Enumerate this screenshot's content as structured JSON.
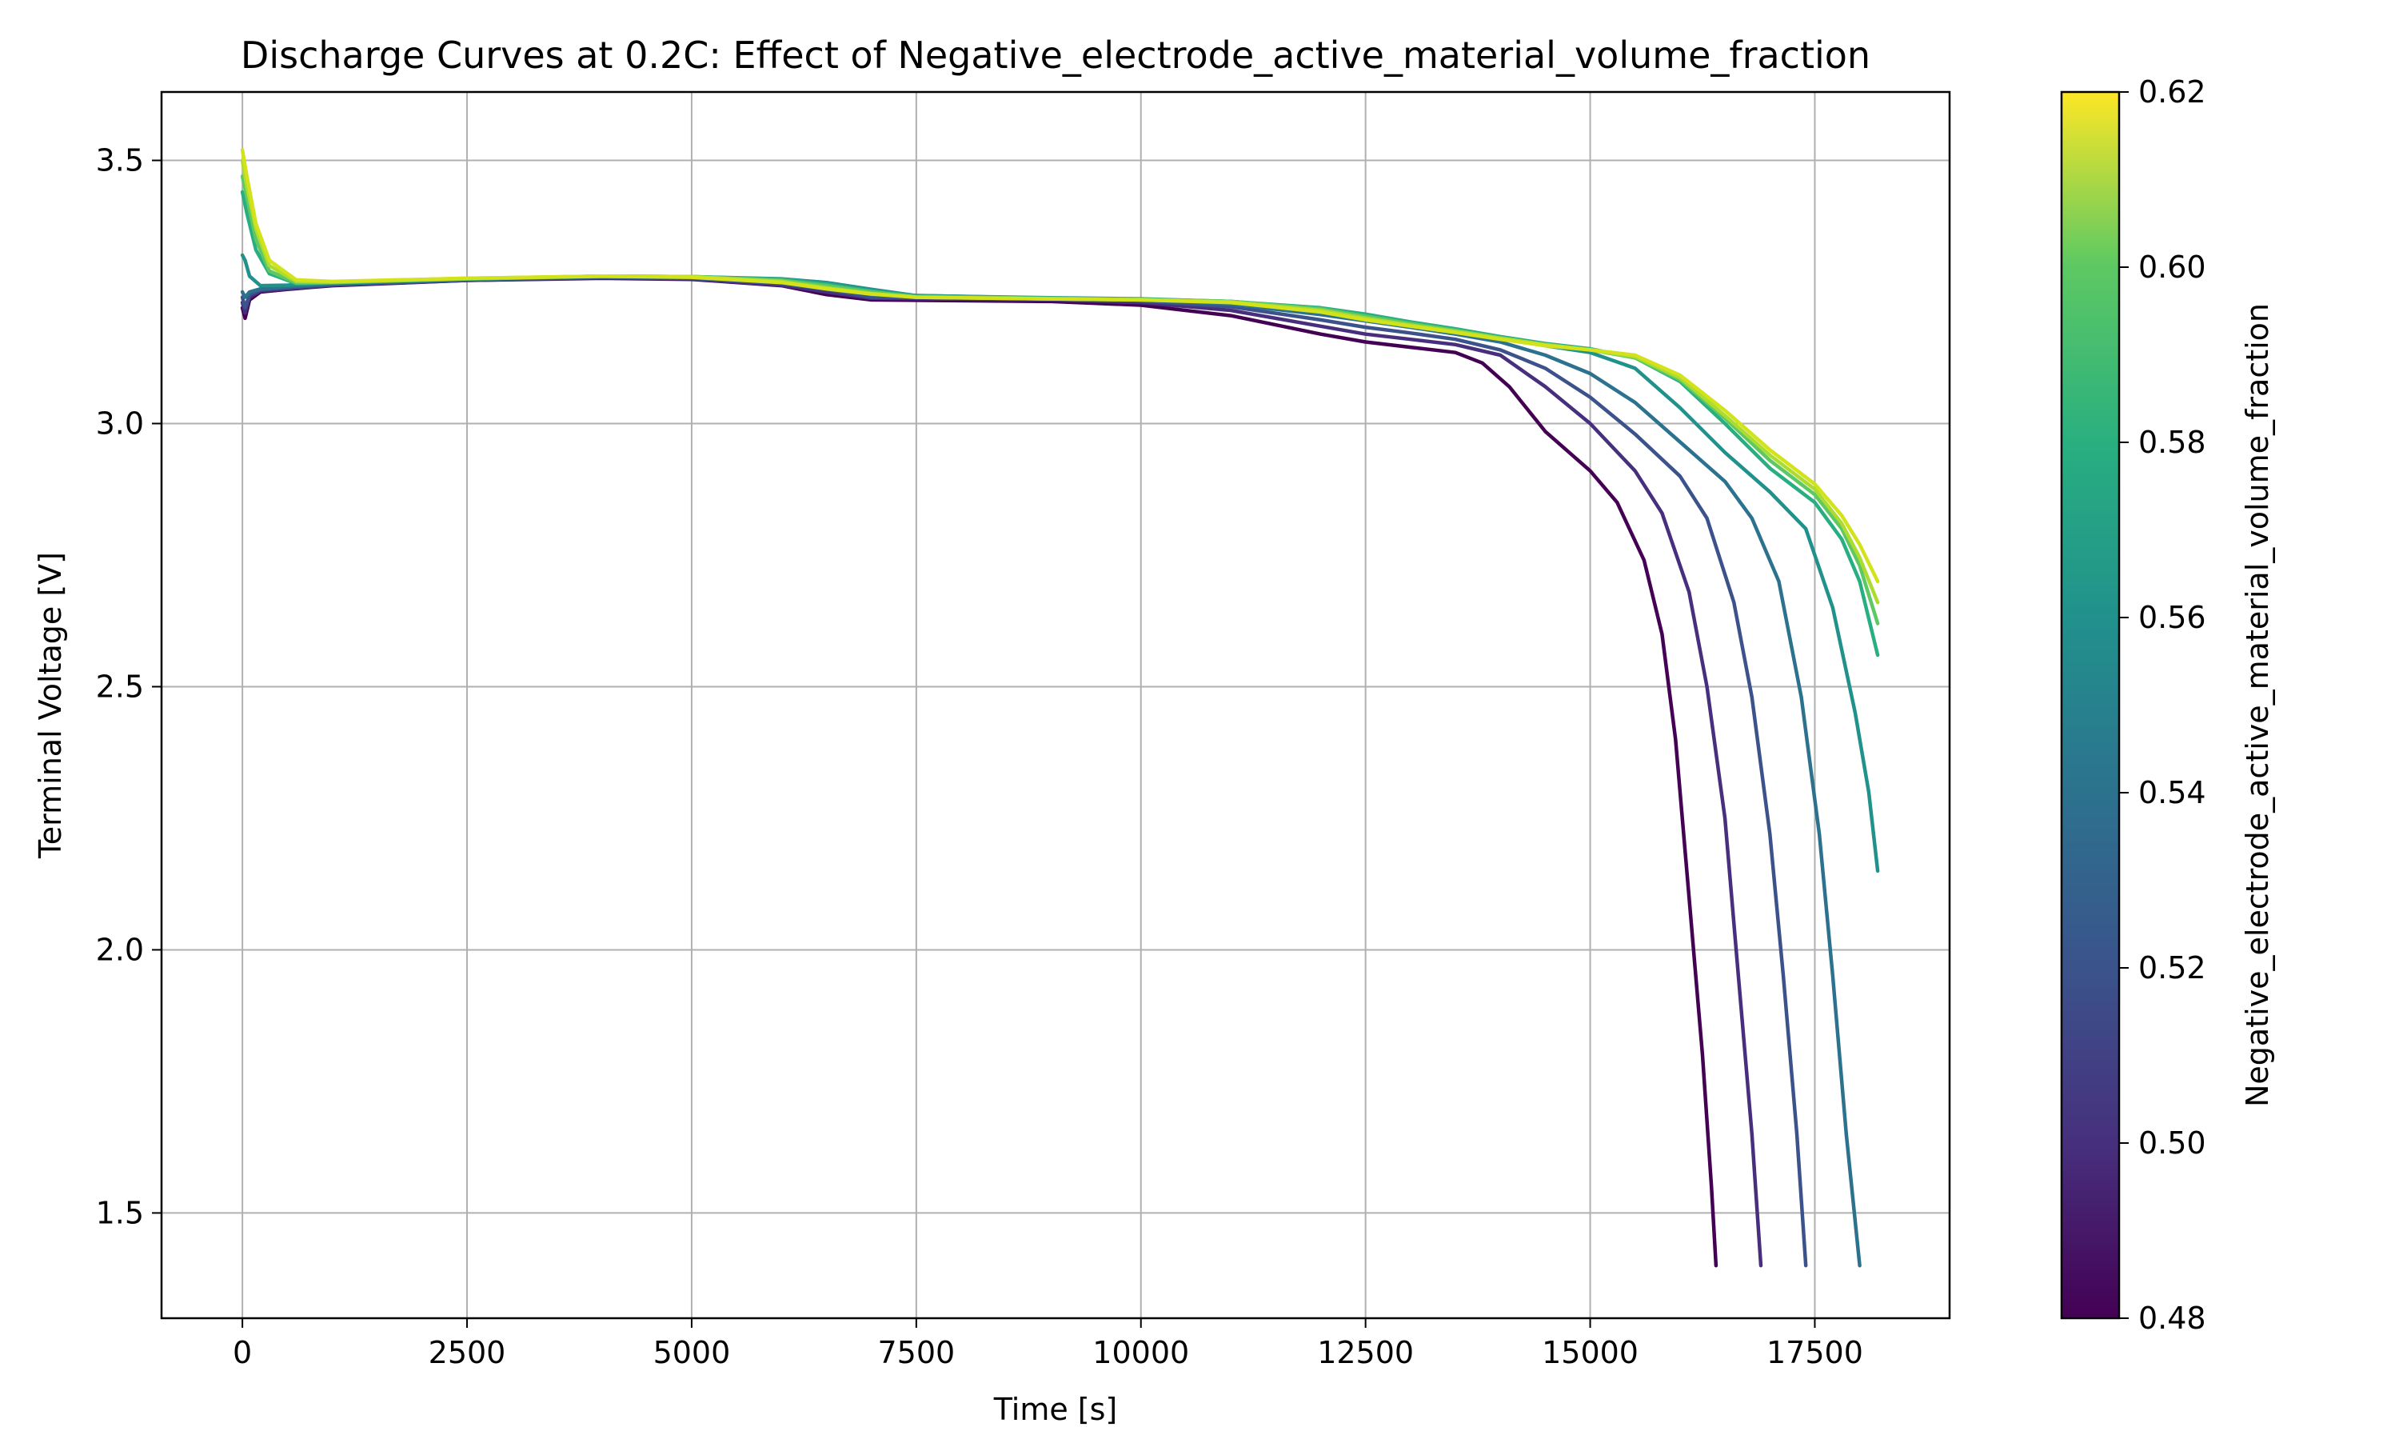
{
  "chart_data": {
    "type": "line",
    "title": "Discharge Curves at 0.2C: Effect of Negative_electrode_active_material_volume_fraction",
    "xlabel": "Time [s]",
    "ylabel": "Terminal Voltage [V]",
    "xlim": [
      -900,
      19000
    ],
    "ylim": [
      1.3,
      3.63
    ],
    "xticks": [
      0,
      2500,
      5000,
      7500,
      10000,
      12500,
      15000,
      17500
    ],
    "yticks": [
      1.5,
      2.0,
      2.5,
      3.0,
      3.5
    ],
    "xtick_labels": [
      "0",
      "2500",
      "5000",
      "7500",
      "10000",
      "12500",
      "15000",
      "17500"
    ],
    "ytick_labels": [
      "1.5",
      "2.0",
      "2.5",
      "3.0",
      "3.5"
    ],
    "grid": true,
    "colorbar": {
      "label": "Negative_electrode_active_material_volume_fraction",
      "colormap": "viridis",
      "min": 0.48,
      "max": 0.62,
      "ticks": [
        0.48,
        0.5,
        0.52,
        0.54,
        0.56,
        0.58,
        0.6,
        0.62
      ],
      "tick_labels": [
        "0.48",
        "0.50",
        "0.52",
        "0.54",
        "0.56",
        "0.58",
        "0.60",
        "0.62"
      ]
    },
    "series": [
      {
        "param": 0.48,
        "color": "#440154",
        "points": [
          [
            0,
            3.22
          ],
          [
            30,
            3.2
          ],
          [
            80,
            3.235
          ],
          [
            200,
            3.25
          ],
          [
            500,
            3.255
          ],
          [
            1000,
            3.262
          ],
          [
            2500,
            3.272
          ],
          [
            4000,
            3.276
          ],
          [
            5000,
            3.274
          ],
          [
            6000,
            3.262
          ],
          [
            6500,
            3.245
          ],
          [
            7000,
            3.235
          ],
          [
            9000,
            3.232
          ],
          [
            10000,
            3.225
          ],
          [
            11000,
            3.205
          ],
          [
            12000,
            3.17
          ],
          [
            12500,
            3.155
          ],
          [
            13000,
            3.145
          ],
          [
            13500,
            3.135
          ],
          [
            13800,
            3.115
          ],
          [
            14100,
            3.07
          ],
          [
            14500,
            2.985
          ],
          [
            15000,
            2.91
          ],
          [
            15300,
            2.85
          ],
          [
            15600,
            2.74
          ],
          [
            15800,
            2.6
          ],
          [
            15950,
            2.4
          ],
          [
            16100,
            2.1
          ],
          [
            16250,
            1.8
          ],
          [
            16350,
            1.55
          ],
          [
            16400,
            1.4
          ]
        ]
      },
      {
        "param": 0.5,
        "color": "#472f7d",
        "points": [
          [
            0,
            3.23
          ],
          [
            30,
            3.21
          ],
          [
            80,
            3.24
          ],
          [
            200,
            3.252
          ],
          [
            500,
            3.256
          ],
          [
            1000,
            3.263
          ],
          [
            2500,
            3.272
          ],
          [
            4000,
            3.277
          ],
          [
            5000,
            3.275
          ],
          [
            6000,
            3.263
          ],
          [
            6500,
            3.25
          ],
          [
            7000,
            3.238
          ],
          [
            9000,
            3.235
          ],
          [
            10000,
            3.23
          ],
          [
            11000,
            3.215
          ],
          [
            12000,
            3.185
          ],
          [
            12500,
            3.17
          ],
          [
            13000,
            3.16
          ],
          [
            13500,
            3.15
          ],
          [
            14000,
            3.13
          ],
          [
            14500,
            3.07
          ],
          [
            15000,
            3.0
          ],
          [
            15500,
            2.91
          ],
          [
            15800,
            2.83
          ],
          [
            16100,
            2.68
          ],
          [
            16300,
            2.5
          ],
          [
            16500,
            2.25
          ],
          [
            16650,
            1.95
          ],
          [
            16800,
            1.65
          ],
          [
            16900,
            1.4
          ]
        ]
      },
      {
        "param": 0.52,
        "color": "#3b528b",
        "points": [
          [
            0,
            3.24
          ],
          [
            30,
            3.22
          ],
          [
            80,
            3.245
          ],
          [
            200,
            3.254
          ],
          [
            500,
            3.258
          ],
          [
            1000,
            3.264
          ],
          [
            2500,
            3.273
          ],
          [
            4000,
            3.278
          ],
          [
            5000,
            3.276
          ],
          [
            6000,
            3.266
          ],
          [
            6500,
            3.255
          ],
          [
            7000,
            3.24
          ],
          [
            9000,
            3.237
          ],
          [
            10000,
            3.233
          ],
          [
            11000,
            3.222
          ],
          [
            12000,
            3.197
          ],
          [
            12500,
            3.183
          ],
          [
            13000,
            3.172
          ],
          [
            13500,
            3.16
          ],
          [
            14000,
            3.14
          ],
          [
            14500,
            3.105
          ],
          [
            15000,
            3.05
          ],
          [
            15500,
            2.98
          ],
          [
            16000,
            2.9
          ],
          [
            16300,
            2.82
          ],
          [
            16600,
            2.66
          ],
          [
            16800,
            2.48
          ],
          [
            17000,
            2.22
          ],
          [
            17150,
            1.95
          ],
          [
            17300,
            1.65
          ],
          [
            17400,
            1.4
          ]
        ]
      },
      {
        "param": 0.54,
        "color": "#2c728e",
        "points": [
          [
            0,
            3.25
          ],
          [
            30,
            3.24
          ],
          [
            80,
            3.25
          ],
          [
            200,
            3.256
          ],
          [
            500,
            3.26
          ],
          [
            1000,
            3.265
          ],
          [
            2500,
            3.274
          ],
          [
            4000,
            3.279
          ],
          [
            5000,
            3.277
          ],
          [
            6000,
            3.27
          ],
          [
            6500,
            3.26
          ],
          [
            7000,
            3.245
          ],
          [
            9000,
            3.238
          ],
          [
            10000,
            3.235
          ],
          [
            11000,
            3.227
          ],
          [
            12000,
            3.207
          ],
          [
            12500,
            3.195
          ],
          [
            13000,
            3.183
          ],
          [
            13500,
            3.17
          ],
          [
            14000,
            3.155
          ],
          [
            14500,
            3.13
          ],
          [
            15000,
            3.095
          ],
          [
            15500,
            3.04
          ],
          [
            16000,
            2.965
          ],
          [
            16500,
            2.89
          ],
          [
            16800,
            2.82
          ],
          [
            17100,
            2.7
          ],
          [
            17350,
            2.48
          ],
          [
            17550,
            2.22
          ],
          [
            17700,
            1.95
          ],
          [
            17850,
            1.65
          ],
          [
            18000,
            1.4
          ]
        ]
      },
      {
        "param": 0.555,
        "color": "#21918c",
        "points": [
          [
            0,
            3.32
          ],
          [
            30,
            3.31
          ],
          [
            80,
            3.28
          ],
          [
            200,
            3.262
          ],
          [
            500,
            3.263
          ],
          [
            1000,
            3.267
          ],
          [
            2500,
            3.275
          ],
          [
            4000,
            3.28
          ],
          [
            5000,
            3.279
          ],
          [
            6000,
            3.275
          ],
          [
            6500,
            3.268
          ],
          [
            7000,
            3.255
          ],
          [
            7500,
            3.243
          ],
          [
            9000,
            3.239
          ],
          [
            10000,
            3.237
          ],
          [
            11000,
            3.232
          ],
          [
            12000,
            3.218
          ],
          [
            12500,
            3.205
          ],
          [
            13000,
            3.19
          ],
          [
            13500,
            3.177
          ],
          [
            14000,
            3.162
          ],
          [
            14500,
            3.148
          ],
          [
            15000,
            3.135
          ],
          [
            15500,
            3.105
          ],
          [
            16000,
            3.03
          ],
          [
            16500,
            2.945
          ],
          [
            17000,
            2.87
          ],
          [
            17400,
            2.8
          ],
          [
            17700,
            2.65
          ],
          [
            17950,
            2.45
          ],
          [
            18100,
            2.3
          ],
          [
            18200,
            2.15
          ]
        ]
      },
      {
        "param": 0.575,
        "color": "#28ae80",
        "points": [
          [
            0,
            3.44
          ],
          [
            50,
            3.4
          ],
          [
            150,
            3.33
          ],
          [
            300,
            3.285
          ],
          [
            600,
            3.266
          ],
          [
            1000,
            3.268
          ],
          [
            2500,
            3.275
          ],
          [
            4000,
            3.28
          ],
          [
            5000,
            3.279
          ],
          [
            6000,
            3.274
          ],
          [
            6500,
            3.265
          ],
          [
            7000,
            3.252
          ],
          [
            7500,
            3.242
          ],
          [
            9000,
            3.238
          ],
          [
            10000,
            3.236
          ],
          [
            11000,
            3.232
          ],
          [
            12000,
            3.22
          ],
          [
            12500,
            3.208
          ],
          [
            13000,
            3.193
          ],
          [
            13500,
            3.18
          ],
          [
            14000,
            3.165
          ],
          [
            14500,
            3.152
          ],
          [
            15000,
            3.142
          ],
          [
            15500,
            3.125
          ],
          [
            16000,
            3.08
          ],
          [
            16500,
            3.0
          ],
          [
            17000,
            2.915
          ],
          [
            17500,
            2.85
          ],
          [
            17800,
            2.78
          ],
          [
            18000,
            2.7
          ],
          [
            18200,
            2.56
          ]
        ]
      },
      {
        "param": 0.59,
        "color": "#5ec962",
        "points": [
          [
            0,
            3.47
          ],
          [
            50,
            3.43
          ],
          [
            150,
            3.35
          ],
          [
            300,
            3.29
          ],
          [
            600,
            3.267
          ],
          [
            1000,
            3.268
          ],
          [
            2500,
            3.275
          ],
          [
            4000,
            3.28
          ],
          [
            5000,
            3.279
          ],
          [
            6000,
            3.272
          ],
          [
            6500,
            3.262
          ],
          [
            7000,
            3.25
          ],
          [
            7500,
            3.241
          ],
          [
            9000,
            3.238
          ],
          [
            10000,
            3.236
          ],
          [
            11000,
            3.232
          ],
          [
            12000,
            3.218
          ],
          [
            12500,
            3.204
          ],
          [
            13000,
            3.19
          ],
          [
            13500,
            3.177
          ],
          [
            14000,
            3.163
          ],
          [
            14500,
            3.15
          ],
          [
            15000,
            3.14
          ],
          [
            15500,
            3.125
          ],
          [
            16000,
            3.083
          ],
          [
            16500,
            3.01
          ],
          [
            17000,
            2.93
          ],
          [
            17500,
            2.865
          ],
          [
            17800,
            2.8
          ],
          [
            18000,
            2.73
          ],
          [
            18200,
            2.62
          ]
        ]
      },
      {
        "param": 0.6,
        "color": "#addc30",
        "points": [
          [
            0,
            3.5
          ],
          [
            50,
            3.45
          ],
          [
            150,
            3.37
          ],
          [
            300,
            3.3
          ],
          [
            600,
            3.27
          ],
          [
            1000,
            3.269
          ],
          [
            2500,
            3.276
          ],
          [
            4000,
            3.28
          ],
          [
            5000,
            3.279
          ],
          [
            6000,
            3.27
          ],
          [
            6500,
            3.258
          ],
          [
            7000,
            3.247
          ],
          [
            7500,
            3.24
          ],
          [
            9000,
            3.237
          ],
          [
            10000,
            3.235
          ],
          [
            11000,
            3.231
          ],
          [
            12000,
            3.215
          ],
          [
            12500,
            3.2
          ],
          [
            13000,
            3.187
          ],
          [
            13500,
            3.175
          ],
          [
            14000,
            3.162
          ],
          [
            14500,
            3.15
          ],
          [
            15000,
            3.14
          ],
          [
            15500,
            3.127
          ],
          [
            16000,
            3.087
          ],
          [
            16500,
            3.015
          ],
          [
            17000,
            2.94
          ],
          [
            17500,
            2.875
          ],
          [
            17800,
            2.81
          ],
          [
            18000,
            2.745
          ],
          [
            18200,
            2.66
          ]
        ]
      },
      {
        "param": 0.62,
        "color": "#d2e21b",
        "points": [
          [
            0,
            3.52
          ],
          [
            50,
            3.47
          ],
          [
            150,
            3.38
          ],
          [
            300,
            3.31
          ],
          [
            600,
            3.273
          ],
          [
            1000,
            3.27
          ],
          [
            2500,
            3.276
          ],
          [
            4000,
            3.28
          ],
          [
            5000,
            3.278
          ],
          [
            6000,
            3.268
          ],
          [
            6500,
            3.256
          ],
          [
            7000,
            3.246
          ],
          [
            7500,
            3.24
          ],
          [
            9000,
            3.237
          ],
          [
            10000,
            3.235
          ],
          [
            11000,
            3.23
          ],
          [
            12000,
            3.212
          ],
          [
            12500,
            3.197
          ],
          [
            13000,
            3.185
          ],
          [
            13500,
            3.173
          ],
          [
            14000,
            3.16
          ],
          [
            14500,
            3.148
          ],
          [
            15000,
            3.14
          ],
          [
            15500,
            3.13
          ],
          [
            16000,
            3.092
          ],
          [
            16500,
            3.025
          ],
          [
            17000,
            2.95
          ],
          [
            17500,
            2.885
          ],
          [
            17800,
            2.825
          ],
          [
            18000,
            2.77
          ],
          [
            18200,
            2.7
          ]
        ]
      }
    ]
  }
}
